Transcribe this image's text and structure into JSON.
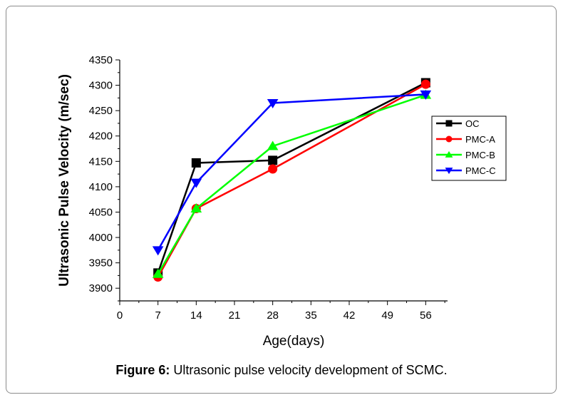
{
  "figure": {
    "caption_label": "Figure 6:",
    "caption_text": " Ultrasonic pulse velocity development of SCMC."
  },
  "chart_data": {
    "type": "line",
    "xlabel": "Age(days)",
    "ylabel": "Ultrasonic Pulse Velocity (m/sec)",
    "xlim": [
      0,
      60
    ],
    "ylim": [
      3875,
      4350
    ],
    "xticks": [
      0,
      7,
      14,
      21,
      28,
      35,
      42,
      49,
      56
    ],
    "yticks": [
      3900,
      3950,
      4000,
      4050,
      4100,
      4150,
      4200,
      4250,
      4300,
      4350
    ],
    "x": [
      7,
      14,
      28,
      56
    ],
    "grid": false,
    "legend_position": "top-right",
    "series": [
      {
        "name": "OC",
        "color": "#000000",
        "marker": "square",
        "values": [
          3930,
          4147,
          4152,
          4305
        ]
      },
      {
        "name": "PMC-A",
        "color": "#ff0000",
        "marker": "circle",
        "values": [
          3922,
          4057,
          4135,
          4302
        ]
      },
      {
        "name": "PMC-B",
        "color": "#00ff00",
        "marker": "triangle-up",
        "values": [
          3928,
          4057,
          4180,
          4281
        ]
      },
      {
        "name": "PMC-C",
        "color": "#0000ff",
        "marker": "triangle-down",
        "values": [
          3975,
          4108,
          4265,
          4282
        ]
      }
    ]
  }
}
